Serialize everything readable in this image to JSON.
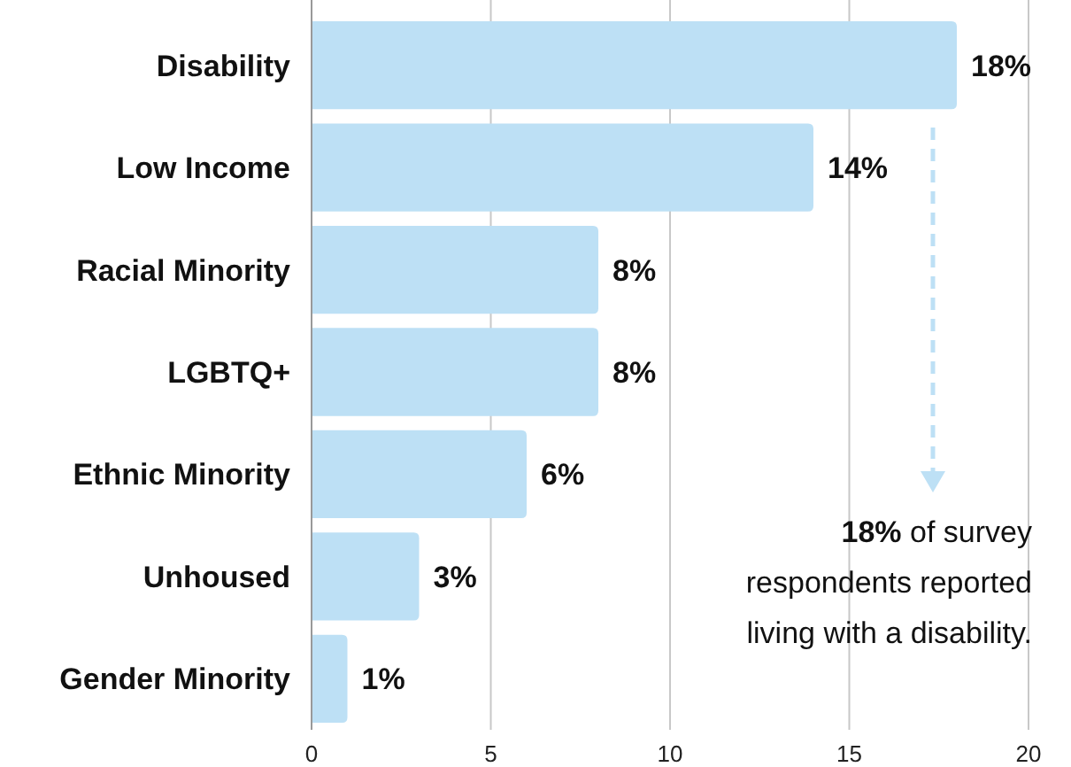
{
  "chart_data": {
    "type": "bar",
    "orientation": "horizontal",
    "categories": [
      "Disability",
      "Low Income",
      "Racial Minority",
      "LGBTQ+",
      "Ethnic Minority",
      "Unhoused",
      "Gender Minority"
    ],
    "values": [
      18,
      14,
      8,
      8,
      6,
      3,
      1
    ],
    "value_labels": [
      "18%",
      "14%",
      "8%",
      "8%",
      "6%",
      "3%",
      "1%"
    ],
    "color": "#bde0f5",
    "xlim": [
      0,
      20
    ],
    "xticks": [
      0,
      5,
      10,
      15,
      20
    ],
    "grid": "x",
    "annotations": [
      "18% of survey\nrespondents reported\nliving with a disability."
    ]
  }
}
